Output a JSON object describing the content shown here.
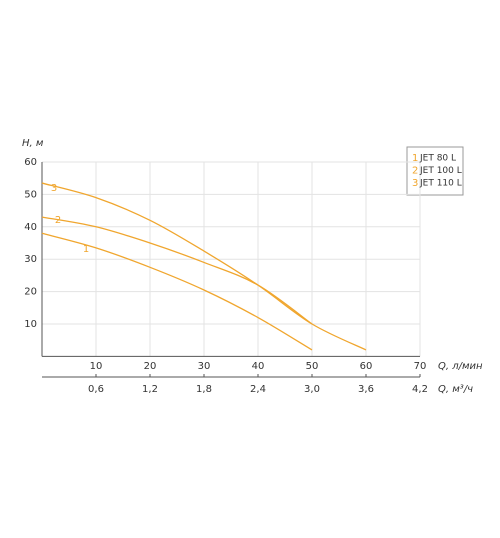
{
  "chart_data": {
    "type": "line",
    "y_label": "H, м",
    "x_label": "Q, л/мин",
    "x2_label": "Q, м³/ч",
    "xlim": [
      0,
      70
    ],
    "xticks": [
      10,
      20,
      30,
      40,
      50,
      60,
      70
    ],
    "x2lim": [
      0,
      4.2
    ],
    "x2ticks": [
      {
        "value": 0.6,
        "label": "0,6"
      },
      {
        "value": 1.2,
        "label": "1,2"
      },
      {
        "value": 1.8,
        "label": "1,8"
      },
      {
        "value": 2.4,
        "label": "2,4"
      },
      {
        "value": 3.0,
        "label": "3,0"
      },
      {
        "value": 3.6,
        "label": "3,6"
      },
      {
        "value": 4.2,
        "label": "4,2"
      }
    ],
    "ylim": [
      0,
      60
    ],
    "yticks": [
      10,
      20,
      30,
      40,
      50,
      60
    ],
    "grid": true,
    "legend": "top-right",
    "series": [
      {
        "name": "JET 80 L",
        "number": "1",
        "color": "#f0a62e",
        "x": [
          0,
          10,
          20,
          30,
          40,
          50
        ],
        "values": [
          38,
          33.5,
          27.5,
          20.5,
          12,
          2
        ]
      },
      {
        "name": "JET 100 L",
        "number": "2",
        "color": "#f0a62e",
        "x": [
          0,
          10,
          20,
          30,
          40,
          50
        ],
        "values": [
          43,
          40,
          35,
          29,
          22,
          10
        ]
      },
      {
        "name": "JET 110 L",
        "number": "3",
        "color": "#f0a62e",
        "x": [
          0,
          10,
          20,
          30,
          40,
          50,
          60
        ],
        "values": [
          53.5,
          49,
          42,
          32.5,
          22,
          10,
          2
        ]
      }
    ]
  }
}
